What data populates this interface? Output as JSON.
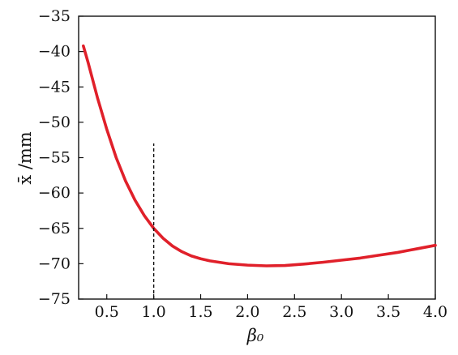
{
  "chart_data": {
    "type": "line",
    "xlabel": "β₀",
    "ylabel": "x̄ /mm",
    "xlim": [
      0.2,
      4.0
    ],
    "ylim": [
      -75,
      -35
    ],
    "x_ticks": [
      0.5,
      1.0,
      1.5,
      2.0,
      2.5,
      3.0,
      3.5,
      4.0
    ],
    "y_ticks": [
      -35,
      -40,
      -45,
      -50,
      -55,
      -60,
      -65,
      -70,
      -75
    ],
    "x_tick_labels": [
      "0.5",
      "1.0",
      "1.5",
      "2.0",
      "2.5",
      "3.0",
      "3.5",
      "4.0"
    ],
    "y_tick_labels": [
      "−35",
      "−40",
      "−45",
      "−50",
      "−55",
      "−60",
      "−65",
      "−70",
      "−75"
    ],
    "grid": false,
    "series": [
      {
        "color": "#e0202a",
        "x": [
          0.25,
          0.3,
          0.4,
          0.5,
          0.6,
          0.7,
          0.8,
          0.9,
          1.0,
          1.1,
          1.2,
          1.3,
          1.4,
          1.5,
          1.6,
          1.8,
          2.0,
          2.2,
          2.4,
          2.6,
          2.8,
          3.0,
          3.2,
          3.4,
          3.6,
          3.8,
          4.0
        ],
        "y": [
          -39.2,
          -41.5,
          -46.5,
          -51.0,
          -55.0,
          -58.3,
          -61.0,
          -63.2,
          -65.0,
          -66.4,
          -67.5,
          -68.3,
          -68.9,
          -69.3,
          -69.6,
          -70.0,
          -70.2,
          -70.3,
          -70.25,
          -70.05,
          -69.8,
          -69.5,
          -69.2,
          -68.8,
          -68.4,
          -67.9,
          -67.4
        ]
      }
    ],
    "annotations": [
      {
        "type": "vertical-dashed-line",
        "x": 1.0,
        "y_from": -75,
        "y_to": -53
      }
    ]
  }
}
